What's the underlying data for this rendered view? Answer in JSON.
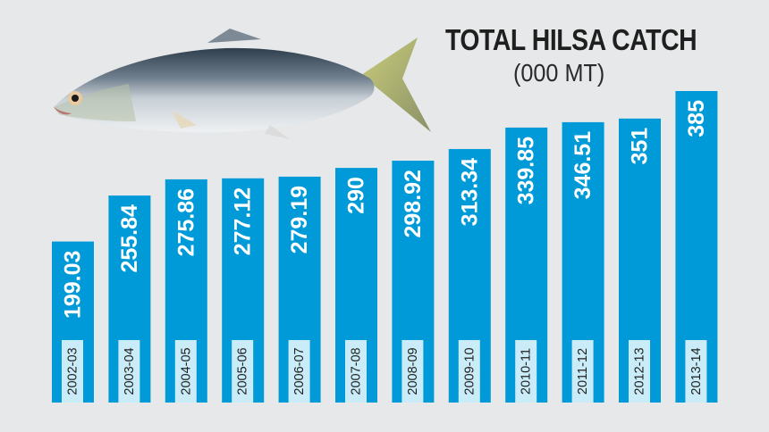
{
  "chart_data": {
    "type": "bar",
    "title": "TOTAL HILSA CATCH",
    "subtitle": "(000 MT)",
    "categories": [
      "2002-03",
      "2003-04",
      "2004-05",
      "2005-06",
      "2006-07",
      "2007-08",
      "2008-09",
      "2009-10",
      "2010-11",
      "2011-12",
      "2012-13",
      "2013-14"
    ],
    "values": [
      199.03,
      255.84,
      275.86,
      277.12,
      279.19,
      290,
      298.92,
      313.34,
      339.85,
      346.51,
      351,
      385
    ],
    "value_labels": [
      "199.03",
      "255.84",
      "275.86",
      "277.12",
      "279.19",
      "290",
      "298.92",
      "313.34",
      "339.85",
      "346.51",
      "351",
      "385"
    ],
    "xlabel": "",
    "ylabel": "",
    "grid": false,
    "colors": {
      "bar": "#009ad9",
      "background": "#e7e8e9",
      "tick_box": "#c9ecf8"
    }
  },
  "illustration": {
    "icon": "hilsa-fish-icon"
  }
}
